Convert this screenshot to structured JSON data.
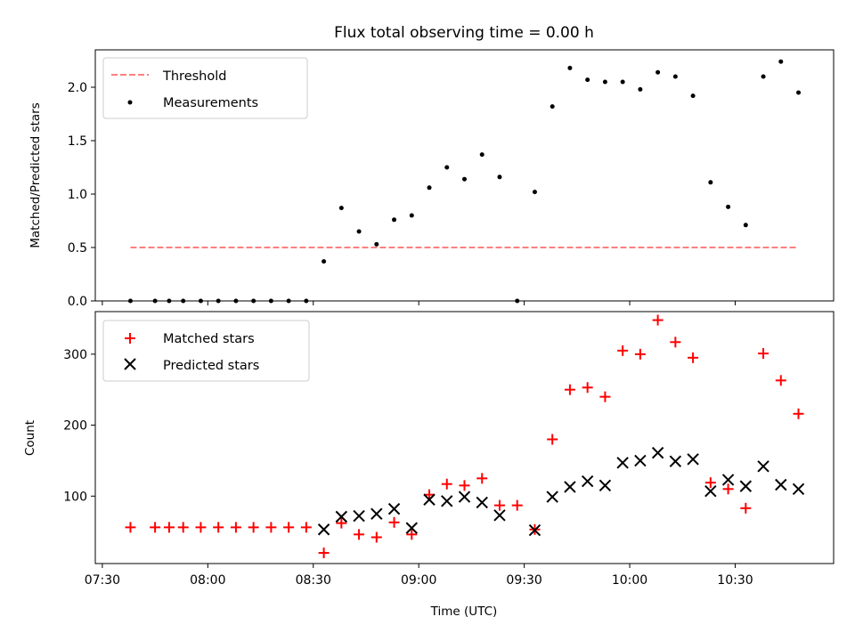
{
  "chart_data": [
    {
      "type": "scatter",
      "title": "Flux total observing time = 0.00 h",
      "xlabel": "",
      "ylabel": "Matched/Predicted stars",
      "ylim": [
        0,
        2.35
      ],
      "yticks": [
        "0.0",
        "0.5",
        "1.0",
        "1.5",
        "2.0"
      ],
      "ytick_values": [
        0,
        0.5,
        1.0,
        1.5,
        2.0
      ],
      "legend": {
        "placement": "upper-left",
        "entries": [
          "Threshold",
          "Measurements"
        ]
      },
      "threshold": {
        "name": "Threshold",
        "value": 0.5,
        "x_start": "07:38",
        "x_end": "10:48",
        "color": "#ff7f7f"
      },
      "series": [
        {
          "name": "Measurements",
          "color": "#000000",
          "marker": "dot",
          "x": [
            "07:38",
            "07:45",
            "07:49",
            "07:53",
            "07:58",
            "08:03",
            "08:08",
            "08:13",
            "08:18",
            "08:23",
            "08:28",
            "08:33",
            "08:38",
            "08:43",
            "08:48",
            "08:53",
            "08:58",
            "09:03",
            "09:08",
            "09:13",
            "09:18",
            "09:23",
            "09:28",
            "09:33",
            "09:38",
            "09:43",
            "09:48",
            "09:53",
            "09:58",
            "10:03",
            "10:08",
            "10:13",
            "10:18",
            "10:23",
            "10:28",
            "10:33",
            "10:38",
            "10:43",
            "10:48"
          ],
          "y": [
            0.0,
            0.0,
            0.0,
            0.0,
            0.0,
            0.0,
            0.0,
            0.0,
            0.0,
            0.0,
            0.0,
            0.37,
            0.87,
            0.65,
            0.53,
            0.76,
            0.8,
            1.06,
            1.25,
            1.14,
            1.37,
            1.16,
            0.0,
            1.02,
            1.82,
            2.18,
            2.07,
            2.05,
            2.05,
            1.98,
            2.14,
            2.1,
            1.92,
            1.11,
            0.88,
            0.71,
            2.1,
            2.24,
            1.95
          ]
        }
      ]
    },
    {
      "type": "scatter",
      "title": "",
      "xlabel": "Time (UTC)",
      "ylabel": "Count",
      "xlim": [
        "07:28",
        "10:58"
      ],
      "xticks": [
        "07:30",
        "08:00",
        "08:30",
        "09:00",
        "09:30",
        "10:00",
        "10:30"
      ],
      "ylim": [
        5,
        360
      ],
      "yticks": [
        "100",
        "200",
        "300"
      ],
      "ytick_values": [
        100,
        200,
        300
      ],
      "legend": {
        "placement": "upper-left",
        "entries": [
          "Matched stars",
          "Predicted stars"
        ]
      },
      "series": [
        {
          "name": "Matched stars",
          "color": "#ff0000",
          "marker": "plus",
          "x": [
            "07:38",
            "07:45",
            "07:49",
            "07:53",
            "07:58",
            "08:03",
            "08:08",
            "08:13",
            "08:18",
            "08:23",
            "08:28",
            "08:33",
            "08:38",
            "08:43",
            "08:48",
            "08:53",
            "08:58",
            "09:03",
            "09:08",
            "09:13",
            "09:18",
            "09:23",
            "09:28",
            "09:33",
            "09:38",
            "09:43",
            "09:48",
            "09:53",
            "09:58",
            "10:03",
            "10:08",
            "10:13",
            "10:18",
            "10:23",
            "10:28",
            "10:33",
            "10:38",
            "10:43",
            "10:48"
          ],
          "y": [
            56,
            56,
            56,
            56,
            56,
            56,
            56,
            56,
            56,
            56,
            56,
            20,
            62,
            46,
            42,
            63,
            46,
            102,
            117,
            115,
            125,
            87,
            87,
            53,
            180,
            250,
            253,
            240,
            305,
            300,
            348,
            317,
            295,
            119,
            110,
            83,
            301,
            263,
            216
          ]
        },
        {
          "name": "Predicted stars",
          "color": "#000000",
          "marker": "x",
          "x": [
            "08:33",
            "08:38",
            "08:43",
            "08:48",
            "08:53",
            "08:58",
            "09:03",
            "09:08",
            "09:13",
            "09:18",
            "09:23",
            "09:33",
            "09:38",
            "09:43",
            "09:48",
            "09:53",
            "09:58",
            "10:03",
            "10:08",
            "10:13",
            "10:18",
            "10:23",
            "10:28",
            "10:33",
            "10:38",
            "10:43",
            "10:48"
          ],
          "y": [
            53,
            71,
            72,
            75,
            82,
            55,
            95,
            93,
            99,
            91,
            73,
            52,
            99,
            113,
            121,
            115,
            147,
            150,
            161,
            149,
            152,
            107,
            123,
            114,
            142,
            116,
            110
          ]
        }
      ]
    }
  ]
}
